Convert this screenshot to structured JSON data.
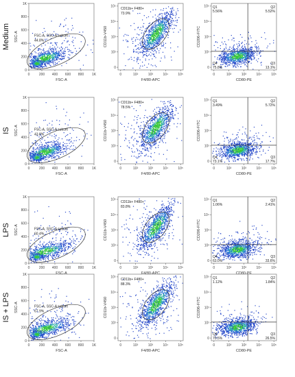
{
  "figure": {
    "rows": [
      {
        "label": "Medium"
      },
      {
        "label": "IS"
      },
      {
        "label": "LPS"
      },
      {
        "label": "IS + LPS"
      }
    ]
  },
  "chart_data": [
    {
      "type": "scatter",
      "row": "Medium",
      "panel": "scatter",
      "xlabel": "FSC-A",
      "ylabel": "SSC-A",
      "xticks": [
        "0",
        "200",
        "400",
        "600",
        "800",
        "1K"
      ],
      "yticks": [
        "0",
        "200",
        "400",
        "600",
        "800",
        "1K"
      ],
      "xlim": [
        0,
        1000
      ],
      "ylim": [
        0,
        1000
      ],
      "gate": {
        "name": "FSC-A, SSC-A subset",
        "percent": "44.8%"
      }
    },
    {
      "type": "scatter",
      "row": "Medium",
      "panel": "markers",
      "xlabel": "F4/80-APC",
      "ylabel": "CD11b-V450",
      "xticks": [
        "0",
        "10²",
        "10³",
        "10⁴",
        "10⁵"
      ],
      "yticks": [
        "0",
        "10²",
        "10³",
        "10⁴",
        "10⁵"
      ],
      "gate": {
        "name": "CD11b+ F480+",
        "percent": "73.9%"
      }
    },
    {
      "type": "scatter",
      "row": "Medium",
      "panel": "quadrant",
      "xlabel": "CD80-PE",
      "ylabel": "CD206-FITC",
      "xticks": [
        "0",
        "10²",
        "10³",
        "10⁴",
        "10⁵"
      ],
      "yticks": [
        "0",
        "10²",
        "10³",
        "10⁴",
        "10⁵"
      ],
      "quadrants": [
        {
          "name": "Q1",
          "percent": "5.56%"
        },
        {
          "name": "Q2",
          "percent": "5.52%"
        },
        {
          "name": "Q3",
          "percent": "13.1%"
        },
        {
          "name": "Q4",
          "percent": "75.8%"
        }
      ]
    },
    {
      "type": "scatter",
      "row": "IS",
      "panel": "scatter",
      "xlabel": "FSC-A",
      "ylabel": "SSC-A",
      "xticks": [
        "0",
        "200",
        "400",
        "600",
        "800",
        "1K"
      ],
      "yticks": [
        "0",
        "200",
        "400",
        "600",
        "800",
        "1K"
      ],
      "xlim": [
        0,
        1000
      ],
      "ylim": [
        0,
        1000
      ],
      "gate": {
        "name": "FSC-A, SSC-A subset",
        "percent": "43.8%"
      }
    },
    {
      "type": "scatter",
      "row": "IS",
      "panel": "markers",
      "xlabel": "F4/80-APC",
      "ylabel": "CD11b-V450",
      "xticks": [
        "0",
        "10²",
        "10³",
        "10⁴",
        "10⁵"
      ],
      "yticks": [
        "0",
        "10²",
        "10³",
        "10⁴",
        "10⁵"
      ],
      "gate": {
        "name": "CD11b+ F480+",
        "percent": "78.5%"
      }
    },
    {
      "type": "scatter",
      "row": "IS",
      "panel": "quadrant",
      "xlabel": "CD80-PE",
      "ylabel": "CD206-FITC",
      "xticks": [
        "0",
        "10²",
        "10³",
        "10⁴",
        "10⁵"
      ],
      "yticks": [
        "0",
        "10²",
        "10³",
        "10⁴",
        "10⁵"
      ],
      "quadrants": [
        {
          "name": "Q1",
          "percent": "3.49%"
        },
        {
          "name": "Q2",
          "percent": "5.72%"
        },
        {
          "name": "Q3",
          "percent": "17.7%"
        },
        {
          "name": "Q4",
          "percent": "73.1%"
        }
      ]
    },
    {
      "type": "scatter",
      "row": "LPS",
      "panel": "scatter",
      "xlabel": "FSC-A",
      "ylabel": "SSC-A",
      "xticks": [
        "0",
        "200",
        "400",
        "600",
        "800",
        "1K"
      ],
      "yticks": [
        "0",
        "200",
        "400",
        "600",
        "800",
        "1K"
      ],
      "xlim": [
        0,
        1000
      ],
      "ylim": [
        0,
        1000
      ],
      "gate": {
        "name": "FSC-A, SSC-A subset",
        "percent": "60.4%"
      }
    },
    {
      "type": "scatter",
      "row": "LPS",
      "panel": "markers",
      "xlabel": "F4/80-APC",
      "ylabel": "CD11b-V450",
      "xticks": [
        "0",
        "10²",
        "10³",
        "10⁴",
        "10⁵"
      ],
      "yticks": [
        "0",
        "10²",
        "10³",
        "10⁴",
        "10⁵"
      ],
      "gate": {
        "name": "CD11b+ F480+",
        "percent": "83.8%"
      }
    },
    {
      "type": "scatter",
      "row": "LPS",
      "panel": "quadrant",
      "xlabel": "CD80-PE",
      "ylabel": "CD206-FITC",
      "xticks": [
        "0",
        "10²",
        "10³",
        "10⁴",
        "10⁵"
      ],
      "yticks": [
        "0",
        "10²",
        "10³",
        "10⁴",
        "10⁵"
      ],
      "quadrants": [
        {
          "name": "Q1",
          "percent": "1.06%"
        },
        {
          "name": "Q2",
          "percent": "2.41%"
        },
        {
          "name": "Q3",
          "percent": "33.6%"
        },
        {
          "name": "Q4",
          "percent": "63.0%"
        }
      ]
    },
    {
      "type": "scatter",
      "row": "IS + LPS",
      "panel": "scatter",
      "xlabel": "FSC-A",
      "ylabel": "SSC-A",
      "xticks": [
        "0",
        "200",
        "400",
        "600",
        "800",
        "1K"
      ],
      "yticks": [
        "0",
        "200",
        "400",
        "600",
        "800",
        "1K"
      ],
      "xlim": [
        0,
        1000
      ],
      "ylim": [
        0,
        1000
      ],
      "gate": {
        "name": "FSC-A, SSC-A subset",
        "percent": "67.9%"
      }
    },
    {
      "type": "scatter",
      "row": "IS + LPS",
      "panel": "markers",
      "xlabel": "F4/80-APC",
      "ylabel": "CD11b-V450",
      "xticks": [
        "0",
        "10²",
        "10³",
        "10⁴",
        "10⁵"
      ],
      "yticks": [
        "0",
        "10²",
        "10³",
        "10⁴",
        "10⁵"
      ],
      "gate": {
        "name": "CD11b+ F480+",
        "percent": "88.3%"
      }
    },
    {
      "type": "scatter",
      "row": "IS + LPS",
      "panel": "quadrant",
      "xlabel": "CD80-PE",
      "ylabel": "CD206-FITC",
      "xticks": [
        "0",
        "10²",
        "10³",
        "10⁴",
        "10⁵"
      ],
      "yticks": [
        "0",
        "10²",
        "10³",
        "10⁴",
        "10⁵"
      ],
      "quadrants": [
        {
          "name": "Q1",
          "percent": "1.12%"
        },
        {
          "name": "Q2",
          "percent": "1.84%"
        },
        {
          "name": "Q3",
          "percent": "26.5%"
        },
        {
          "name": "Q4",
          "percent": "70.5%"
        }
      ]
    }
  ]
}
